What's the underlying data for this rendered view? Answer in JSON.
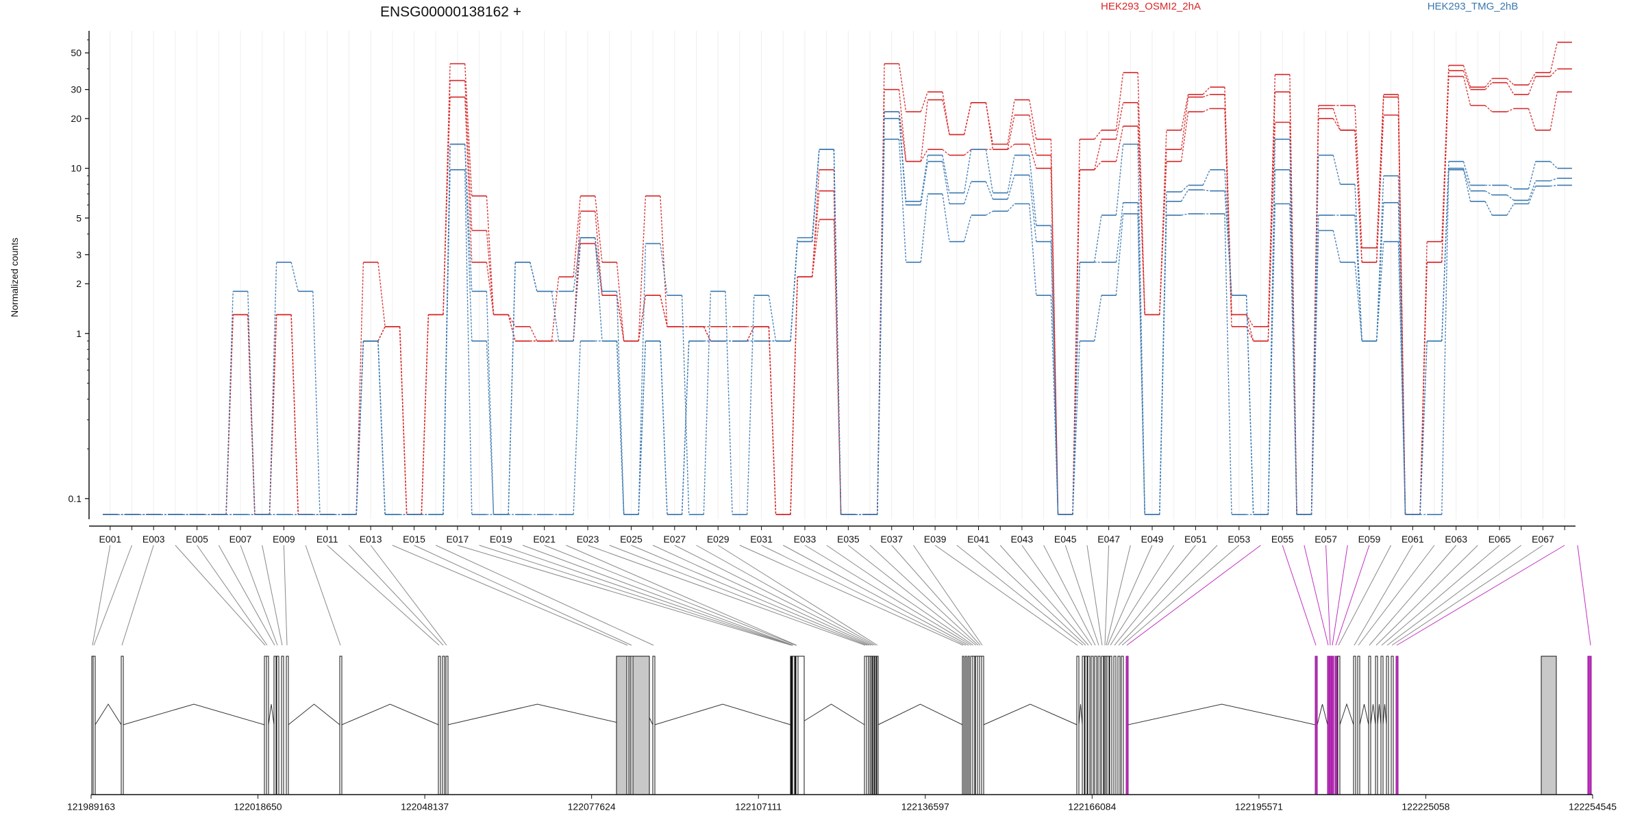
{
  "chart_data": {
    "type": "line",
    "title": "ENSG00000138162 +",
    "ylabel": "Normalized counts",
    "yscale": "log",
    "ylim": [
      0.075,
      68
    ],
    "yticks": [
      0.1,
      1,
      2,
      3,
      5,
      10,
      20,
      30,
      50
    ],
    "ytick_labels": [
      "0.1",
      "1",
      "2",
      "3",
      "5",
      "10",
      "20",
      "30",
      "50"
    ],
    "categories": [
      "E001",
      "E002",
      "E003",
      "E004",
      "E005",
      "E006",
      "E007",
      "E008",
      "E009",
      "E010",
      "E011",
      "E012",
      "E013",
      "E014",
      "E015",
      "E016",
      "E017",
      "E018",
      "E019",
      "E020",
      "E021",
      "E022",
      "E023",
      "E024",
      "E025",
      "E026",
      "E027",
      "E028",
      "E029",
      "E030",
      "E031",
      "E032",
      "E033",
      "E034",
      "E035",
      "E036",
      "E037",
      "E038",
      "E039",
      "E040",
      "E041",
      "E042",
      "E043",
      "E044",
      "E045",
      "E046",
      "E047",
      "E048",
      "E049",
      "E050",
      "E051",
      "E052",
      "E053",
      "E054",
      "E055",
      "E056",
      "E057",
      "E058",
      "E059",
      "E060",
      "E061",
      "E062",
      "E063",
      "E064",
      "E065",
      "E066",
      "E067",
      "E068"
    ],
    "xtick_labels": [
      "E001",
      "E003",
      "E005",
      "E007",
      "E009",
      "E011",
      "E013",
      "E015",
      "E017",
      "E019",
      "E021",
      "E023",
      "E025",
      "E027",
      "E029",
      "E031",
      "E033",
      "E035",
      "E037",
      "E039",
      "E041",
      "E043",
      "E045",
      "E047",
      "E049",
      "E051",
      "E053",
      "E055",
      "E057",
      "E059",
      "E061",
      "E063",
      "E065",
      "E067"
    ],
    "legend_position": "top",
    "series": [
      {
        "name": "HEK293_OSMI2_2hA",
        "color": "#d62728",
        "values": [
          0.08,
          0.08,
          0.08,
          0.08,
          0.08,
          0.08,
          1.3,
          0.08,
          1.3,
          0.08,
          0.08,
          0.08,
          2.7,
          1.1,
          0.08,
          1.3,
          43,
          6.8,
          1.3,
          1.1,
          0.9,
          2.2,
          6.8,
          2.7,
          0.9,
          6.8,
          1.1,
          1.1,
          1.1,
          1.1,
          1.1,
          0.08,
          2.2,
          9.8,
          0.08,
          0.08,
          43,
          22,
          29,
          16,
          25,
          14,
          26,
          15,
          0.08,
          15,
          17,
          38,
          1.3,
          17,
          28,
          31,
          1.3,
          1.1,
          37,
          0.08,
          24,
          24,
          3.3,
          28,
          0.08,
          3.6,
          42,
          31,
          35,
          32,
          38,
          58
        ]
      },
      {
        "name": "HEK293_OSMI2_2hA",
        "color": "#d62728",
        "values": [
          0.08,
          0.08,
          0.08,
          0.08,
          0.08,
          0.08,
          1.3,
          0.08,
          1.3,
          0.08,
          0.08,
          0.08,
          0.9,
          1.1,
          0.08,
          1.3,
          34,
          4.2,
          1.3,
          0.9,
          0.9,
          0.9,
          5.5,
          1.7,
          0.9,
          1.7,
          1.1,
          1.1,
          0.9,
          0.9,
          1.1,
          0.08,
          2.2,
          7.3,
          0.08,
          0.08,
          30,
          11,
          26,
          16,
          25,
          13,
          21,
          12,
          0.08,
          9.8,
          15,
          25,
          1.3,
          13,
          27,
          28,
          1.3,
          0.9,
          29,
          0.08,
          23,
          17,
          2.7,
          27,
          0.08,
          2.7,
          39,
          30,
          33,
          28,
          36,
          40
        ]
      },
      {
        "name": "HEK293_OSMI2_2hA",
        "color": "#d62728",
        "values": [
          0.08,
          0.08,
          0.08,
          0.08,
          0.08,
          0.08,
          1.3,
          0.08,
          1.3,
          0.08,
          0.08,
          0.08,
          0.9,
          1.1,
          0.08,
          1.3,
          27,
          2.7,
          1.3,
          0.9,
          0.9,
          0.9,
          3.5,
          1.7,
          0.9,
          1.7,
          1.1,
          1.1,
          0.9,
          0.9,
          1.1,
          0.08,
          2.2,
          4.9,
          0.08,
          0.08,
          22,
          11,
          13,
          12,
          13,
          13,
          14,
          10,
          0.08,
          9.8,
          11,
          18,
          1.3,
          11,
          22,
          23,
          1.1,
          0.9,
          19,
          0.08,
          20,
          17,
          2.7,
          21,
          0.08,
          2.7,
          36,
          24,
          22,
          23,
          17,
          29
        ]
      },
      {
        "name": "HEK293_TMG_2hB",
        "color": "#3a78b0",
        "values": [
          0.08,
          0.08,
          0.08,
          0.08,
          0.08,
          0.08,
          1.8,
          0.08,
          2.7,
          1.8,
          0.08,
          0.08,
          0.9,
          0.08,
          0.08,
          0.08,
          14,
          1.8,
          0.08,
          2.7,
          1.8,
          1.8,
          3.8,
          1.8,
          0.08,
          3.5,
          1.7,
          0.08,
          1.8,
          0.08,
          1.7,
          0.9,
          3.8,
          13,
          0.08,
          0.08,
          22,
          6.3,
          12,
          7.1,
          13,
          7.1,
          12,
          4.5,
          0.08,
          2.7,
          5.2,
          14,
          0.08,
          7.2,
          7.9,
          9.8,
          1.7,
          0.08,
          15,
          0.08,
          12,
          8.0,
          0.9,
          9.0,
          0.08,
          0.9,
          11,
          7.9,
          7.9,
          7.5,
          11,
          10
        ]
      },
      {
        "name": "HEK293_TMG_2hB",
        "color": "#3a78b0",
        "values": [
          0.08,
          0.08,
          0.08,
          0.08,
          0.08,
          0.08,
          0.08,
          0.08,
          0.08,
          0.08,
          0.08,
          0.08,
          0.9,
          0.08,
          0.08,
          0.08,
          14,
          0.9,
          0.08,
          2.7,
          1.8,
          0.9,
          3.8,
          0.9,
          0.08,
          0.9,
          0.08,
          0.9,
          0.9,
          0.9,
          0.9,
          0.9,
          3.6,
          13,
          0.08,
          0.08,
          20,
          6.0,
          11,
          6.1,
          8.3,
          6.5,
          9.1,
          3.6,
          0.08,
          2.7,
          2.7,
          6.2,
          0.08,
          6.3,
          7.4,
          7.3,
          1.7,
          0.08,
          9.8,
          0.08,
          5.2,
          5.2,
          0.9,
          6.2,
          0.08,
          0.9,
          10,
          7.3,
          6.9,
          6.4,
          8.4,
          8.7
        ]
      },
      {
        "name": "HEK293_TMG_2hB",
        "color": "#3a78b0",
        "values": [
          0.08,
          0.08,
          0.08,
          0.08,
          0.08,
          0.08,
          0.08,
          0.08,
          0.08,
          0.08,
          0.08,
          0.08,
          0.9,
          0.08,
          0.08,
          0.08,
          9.8,
          0.08,
          0.08,
          0.08,
          0.08,
          0.08,
          0.9,
          0.9,
          0.08,
          0.9,
          0.08,
          0.9,
          0.9,
          0.9,
          0.9,
          0.9,
          3.6,
          13,
          0.08,
          0.08,
          15,
          2.7,
          7.0,
          3.6,
          5.2,
          5.5,
          6.1,
          1.7,
          0.08,
          0.9,
          1.7,
          5.3,
          0.08,
          5.2,
          5.3,
          5.3,
          0.08,
          0.08,
          6.1,
          0.08,
          4.2,
          2.7,
          0.9,
          3.6,
          0.08,
          0.08,
          9.8,
          6.3,
          5.2,
          6.1,
          7.8,
          7.9
        ]
      }
    ],
    "gene_model": {
      "coordinate_labels": [
        "121989163",
        "122018650",
        "122048137",
        "122077624",
        "122107111",
        "122136597",
        "122166084",
        "122195571",
        "122225058",
        "122254545"
      ],
      "genomic_range": [
        121989163,
        122254545
      ]
    }
  }
}
